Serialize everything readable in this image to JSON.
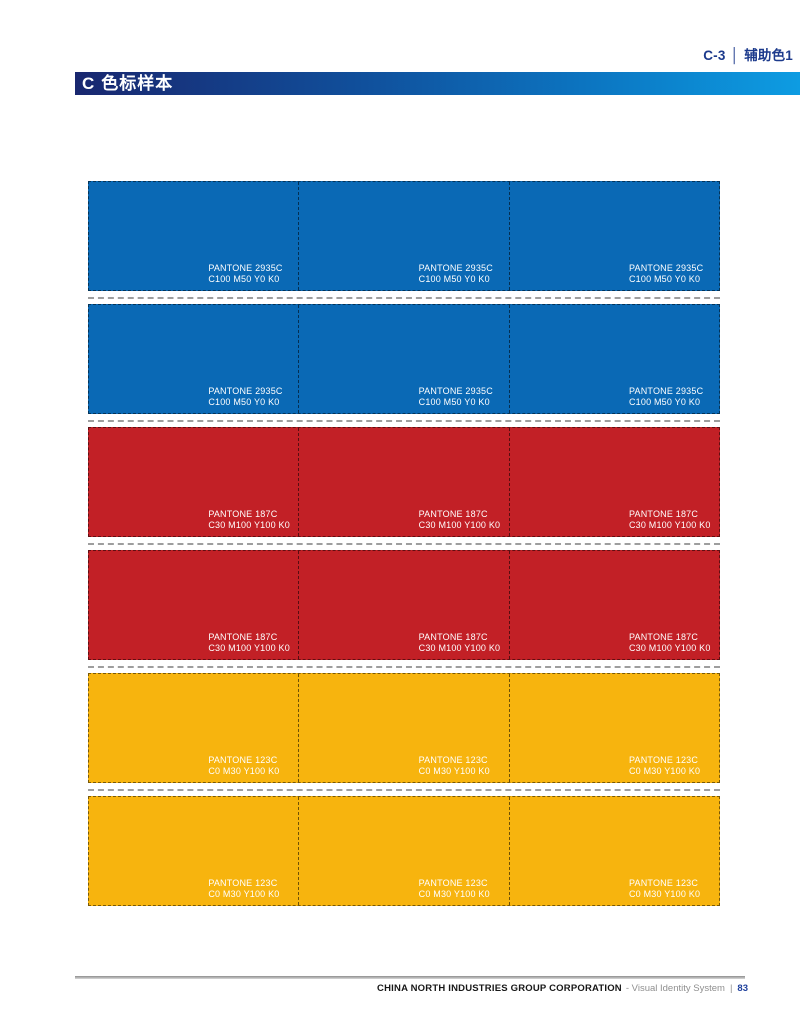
{
  "header_tab": {
    "code": "C-3",
    "separator": "│",
    "label": "辅助色1"
  },
  "section_header": {
    "letter": "C",
    "title": "色标样本"
  },
  "swatches": {
    "columns": 3,
    "rows": [
      {
        "pantone": "PANTONE 2935C",
        "cmyk": "C100 M50 Y0 K0",
        "color": "#0a69b5"
      },
      {
        "pantone": "PANTONE 2935C",
        "cmyk": "C100 M50 Y0 K0",
        "color": "#0a69b5"
      },
      {
        "pantone": "PANTONE 187C",
        "cmyk": "C30 M100 Y100 K0",
        "color": "#c22026"
      },
      {
        "pantone": "PANTONE 187C",
        "cmyk": "C30 M100 Y100 K0",
        "color": "#c22026"
      },
      {
        "pantone": "PANTONE 123C",
        "cmyk": "C0 M30 Y100 K0",
        "color": "#f7b40e"
      },
      {
        "pantone": "PANTONE 123C",
        "cmyk": "C0 M30 Y100 K0",
        "color": "#f7b40e"
      }
    ]
  },
  "footer": {
    "company": "CHINA NORTH INDUSTRIES GROUP CORPORATION",
    "suffix": "- Visual Identity System",
    "separator": "|",
    "page_number": "83"
  },
  "theme": {
    "accent_navy": "#1c3a8c",
    "bar_gradient_start": "#19276f",
    "bar_gradient_end": "#0d9ce2",
    "swatch_text": "#ffffff",
    "cut_line_gray": "#9e9e9e",
    "page_background": "#ffffff"
  }
}
